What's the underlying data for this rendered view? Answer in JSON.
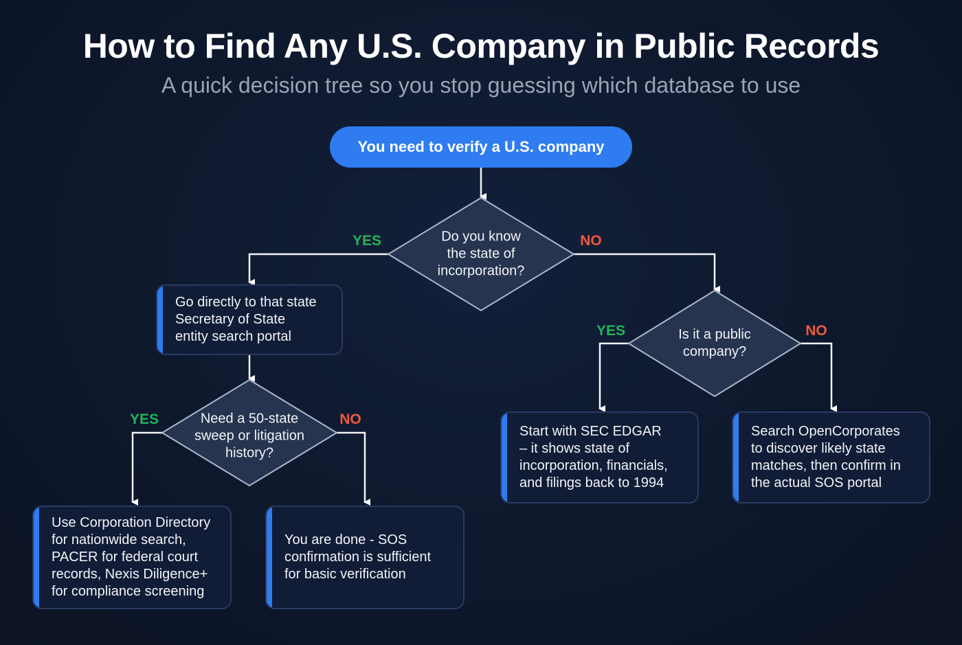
{
  "title": "How to Find Any U.S. Company in Public Records",
  "subtitle": "A quick decision tree so you stop guessing which database to use",
  "start": "You need to verify a U.S. company",
  "decisions": {
    "know_state": "Do you know\nthe state of\nincorporation?",
    "public_company": "Is it a public\ncompany?",
    "sweep": "Need a 50-state\nsweep or litigation\nhistory?"
  },
  "outcomes": {
    "sos_portal": "Go directly to that state\nSecretary of State\nentity search portal",
    "corp_directory": "Use Corporation Directory\nfor nationwide search,\nPACER for federal court\nrecords, Nexis Diligence+\nfor compliance screening",
    "done": "You are done - SOS\nconfirmation is sufficient\nfor basic verification",
    "edgar": "Start with SEC EDGAR\n– it shows state of\nincorporation, financials,\nand filings back to 1994",
    "opencorporates": "Search OpenCorporates\nto discover likely state\nmatches, then confirm in\nthe actual SOS portal"
  },
  "labels": {
    "yes": "YES",
    "no": "NO"
  },
  "colors": {
    "accent": "#2f7cf0",
    "yes": "#22b35a",
    "no": "#f0583c",
    "background": "#0d1629"
  }
}
